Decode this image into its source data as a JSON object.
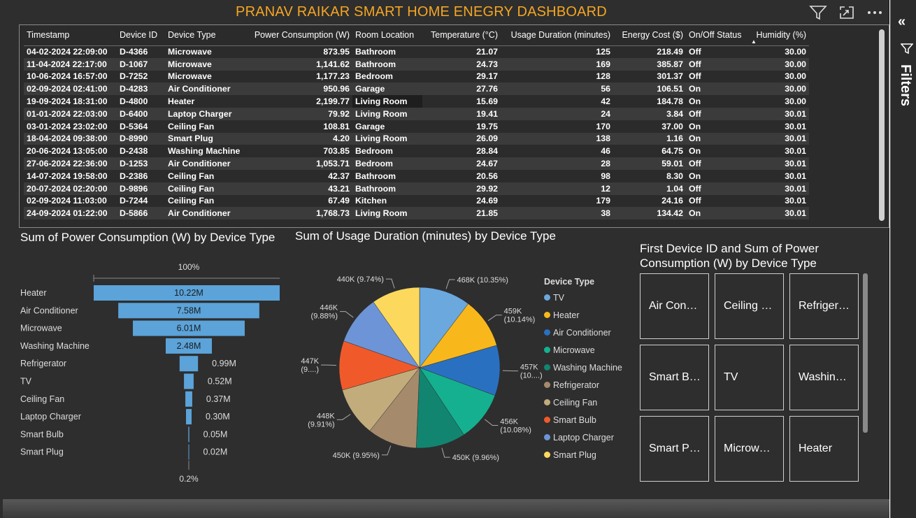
{
  "title": "PRANAV RAIKAR SMART HOME ENEGRY DASHBOARD",
  "top_icons": [
    "filter-icon",
    "focus-mode-icon",
    "more-options-icon"
  ],
  "filters_pane": {
    "label": "Filters",
    "collapse_icon": "double-chevron-left-icon",
    "funnel_icon": "filter-icon"
  },
  "table": {
    "columns": [
      "Timestamp",
      "Device ID",
      "Device Type",
      "Power Consumption (W)",
      "Room Location",
      "Temperature (°C)",
      "Usage Duration (minutes)",
      "Energy Cost ($)",
      "On/Off Status",
      "Humidity (%)"
    ],
    "sort_column": "Humidity (%)",
    "rows": [
      [
        "04-02-2024 22:09:00",
        "D-4366",
        "Microwave",
        "873.95",
        "Bathroom",
        "21.07",
        "125",
        "218.49",
        "Off",
        "30.00"
      ],
      [
        "11-04-2024 22:17:00",
        "D-1067",
        "Microwave",
        "1,141.62",
        "Bathroom",
        "24.73",
        "169",
        "385.87",
        "Off",
        "30.00"
      ],
      [
        "10-06-2024 16:57:00",
        "D-7252",
        "Microwave",
        "1,177.23",
        "Bedroom",
        "29.17",
        "128",
        "301.37",
        "Off",
        "30.00"
      ],
      [
        "02-09-2024 02:41:00",
        "D-4283",
        "Air Conditioner",
        "950.96",
        "Garage",
        "27.76",
        "56",
        "106.51",
        "On",
        "30.00"
      ],
      [
        "19-09-2024 18:31:00",
        "D-4800",
        "Heater",
        "2,199.77",
        "Living Room",
        "15.69",
        "42",
        "184.78",
        "On",
        "30.00"
      ],
      [
        "01-01-2024 22:03:00",
        "D-6400",
        "Laptop Charger",
        "79.92",
        "Living Room",
        "19.41",
        "24",
        "3.84",
        "Off",
        "30.01"
      ],
      [
        "03-01-2024 23:02:00",
        "D-5364",
        "Ceiling Fan",
        "108.81",
        "Garage",
        "19.75",
        "170",
        "37.00",
        "On",
        "30.01"
      ],
      [
        "18-04-2024 09:38:00",
        "D-8990",
        "Smart Plug",
        "4.20",
        "Living Room",
        "26.09",
        "138",
        "1.16",
        "On",
        "30.01"
      ],
      [
        "20-06-2024 13:05:00",
        "D-2438",
        "Washing Machine",
        "703.85",
        "Bedroom",
        "28.84",
        "46",
        "64.75",
        "On",
        "30.01"
      ],
      [
        "27-06-2024 22:36:00",
        "D-1253",
        "Air Conditioner",
        "1,053.71",
        "Bedroom",
        "24.67",
        "28",
        "59.01",
        "Off",
        "30.01"
      ],
      [
        "14-07-2024 19:58:00",
        "D-2386",
        "Ceiling Fan",
        "42.37",
        "Bathroom",
        "20.56",
        "98",
        "8.30",
        "On",
        "30.01"
      ],
      [
        "20-07-2024 02:20:00",
        "D-9896",
        "Ceiling Fan",
        "43.21",
        "Bathroom",
        "29.92",
        "12",
        "1.04",
        "Off",
        "30.01"
      ],
      [
        "02-09-2024 11:03:00",
        "D-7244",
        "Ceiling Fan",
        "67.49",
        "Kitchen",
        "24.69",
        "179",
        "24.16",
        "Off",
        "30.01"
      ],
      [
        "24-09-2024 01:22:00",
        "D-5866",
        "Air Conditioner",
        "1,768.73",
        "Living Room",
        "21.85",
        "38",
        "134.42",
        "On",
        "30.01"
      ]
    ]
  },
  "funnel": {
    "title": "Sum of Power Consumption (W) by Device Type",
    "top_pct": "100%",
    "bottom_pct": "0.2%",
    "bar_color": "#5ba3d9",
    "items": [
      {
        "label": "Heater",
        "value": 10.22,
        "text": "10.22M"
      },
      {
        "label": "Air Conditioner",
        "value": 7.58,
        "text": "7.58M"
      },
      {
        "label": "Microwave",
        "value": 6.01,
        "text": "6.01M"
      },
      {
        "label": "Washing Machine",
        "value": 2.48,
        "text": "2.48M"
      },
      {
        "label": "Refrigerator",
        "value": 0.99,
        "text": "0.99M"
      },
      {
        "label": "TV",
        "value": 0.52,
        "text": "0.52M"
      },
      {
        "label": "Ceiling Fan",
        "value": 0.37,
        "text": "0.37M"
      },
      {
        "label": "Laptop Charger",
        "value": 0.3,
        "text": "0.30M"
      },
      {
        "label": "Smart Bulb",
        "value": 0.05,
        "text": "0.05M"
      },
      {
        "label": "Smart Plug",
        "value": 0.02,
        "text": "0.02M"
      }
    ]
  },
  "pie": {
    "title": "Sum of Usage Duration (minutes) by Device Type",
    "legend_title": "Device Type",
    "slices": [
      {
        "name": "TV",
        "value": 468,
        "color": "#6aa8de",
        "label": [
          "468K (10.35%)"
        ]
      },
      {
        "name": "Heater",
        "value": 459,
        "color": "#f8b81c",
        "label": [
          "459K",
          "(10.14%)"
        ]
      },
      {
        "name": "Air Conditioner",
        "value": 457,
        "color": "#2a70c0",
        "label": [
          "457K",
          "(10....)"
        ]
      },
      {
        "name": "Microwave",
        "value": 456,
        "color": "#15b08f",
        "label": [
          "456K",
          "(10.08%)"
        ]
      },
      {
        "name": "Washing Machine",
        "value": 450,
        "color": "#128570",
        "label": [
          "450K (9.96%)"
        ]
      },
      {
        "name": "Refrigerator",
        "value": 450,
        "color": "#a68a6c",
        "label": [
          "450K (9.95%)"
        ]
      },
      {
        "name": "Ceiling Fan",
        "value": 448,
        "color": "#c2ac7c",
        "label": [
          "448K",
          "(9.91%)"
        ]
      },
      {
        "name": "Smart Bulb",
        "value": 447,
        "color": "#f05a2b",
        "label": [
          "447K",
          "(9....)"
        ]
      },
      {
        "name": "Laptop Charger",
        "value": 446,
        "color": "#6d94d6",
        "label": [
          "446K",
          "(9.88%)"
        ]
      },
      {
        "name": "Smart Plug",
        "value": 440,
        "color": "#fcd95c",
        "label": [
          "440K (9.74%)"
        ]
      }
    ]
  },
  "chart_data": [
    {
      "type": "bar",
      "title": "Sum of Power Consumption (W) by Device Type",
      "categories": [
        "Heater",
        "Air Conditioner",
        "Microwave",
        "Washing Machine",
        "Refrigerator",
        "TV",
        "Ceiling Fan",
        "Laptop Charger",
        "Smart Bulb",
        "Smart Plug"
      ],
      "values": [
        10.22,
        7.58,
        6.01,
        2.48,
        0.99,
        0.52,
        0.37,
        0.3,
        0.05,
        0.02
      ]
    },
    {
      "type": "pie",
      "title": "Sum of Usage Duration (minutes) by Device Type",
      "categories": [
        "TV",
        "Heater",
        "Air Conditioner",
        "Microwave",
        "Washing Machine",
        "Refrigerator",
        "Ceiling Fan",
        "Smart Bulb",
        "Laptop Charger",
        "Smart Plug"
      ],
      "values": [
        468,
        459,
        457,
        456,
        450,
        450,
        448,
        447,
        446,
        440
      ]
    }
  ],
  "cards": {
    "title": "First Device ID and Sum of Power Consumption (W) by Device Type",
    "items": [
      "Air Con…",
      "Ceiling …",
      "Refriger…",
      "Smart B…",
      "TV",
      "Washin…",
      "Smart P…",
      "Microw…",
      "Heater"
    ]
  }
}
